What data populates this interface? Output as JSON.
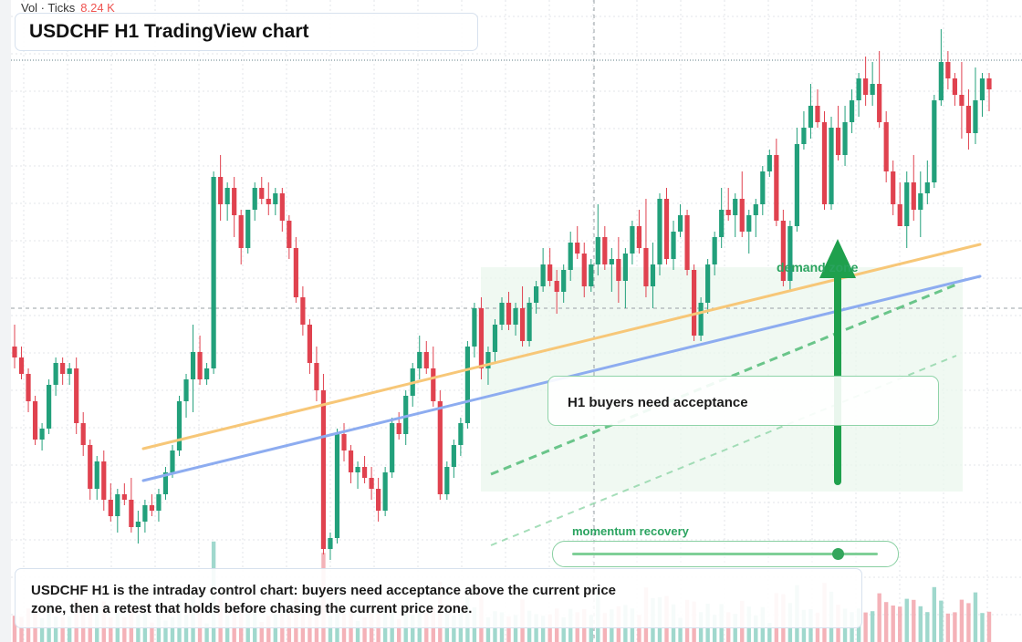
{
  "header": {
    "vol_label": "Vol · Ticks",
    "vol_value": "8.24 K",
    "title": "USDCHF H1 TradingView chart"
  },
  "annotations": {
    "callout": "H1 buyers need acceptance",
    "zone_label": "demand zone",
    "momentum_label": "momentum recovery",
    "momentum_level": 0.87,
    "summary": "USDCHF H1 is the intraday control chart: buyers need acceptance above the current price zone, then a retest that holds before chasing the current price zone."
  },
  "colors": {
    "up": "#22a07b",
    "down": "#e0424f",
    "up_volume": "#8fd1c4",
    "down_volume": "#f2a4ab",
    "orange_trend": "#f7c778",
    "blue_trend": "#8dacf0",
    "green": "#1fa04d",
    "zone_fill": "#eaf7ec",
    "grid": "#e3e6ea"
  },
  "chart_data": {
    "type": "candlestick",
    "symbol": "USDCHF",
    "timeframe": "H1",
    "grid": true,
    "ylim": [
      0,
      100
    ],
    "series": [
      {
        "ohlc": [
          [
            40,
            44,
            36,
            38
          ],
          [
            38,
            40,
            34,
            35
          ],
          [
            35,
            36,
            28,
            30
          ],
          [
            30,
            31,
            22,
            23
          ],
          [
            23,
            26,
            21,
            25
          ],
          [
            25,
            34,
            24,
            33
          ],
          [
            33,
            38,
            31,
            37
          ],
          [
            37,
            38,
            33,
            35
          ],
          [
            35,
            37,
            33,
            36
          ],
          [
            36,
            38,
            24,
            26
          ],
          [
            26,
            28,
            20,
            22
          ],
          [
            22,
            23,
            12,
            14
          ],
          [
            14,
            20,
            12,
            19
          ],
          [
            19,
            21,
            10,
            12
          ],
          [
            12,
            15,
            8,
            9
          ],
          [
            9,
            14,
            6,
            13
          ],
          [
            13,
            15,
            11,
            12
          ],
          [
            12,
            16,
            6,
            7
          ],
          [
            7,
            10,
            4,
            8
          ],
          [
            8,
            12,
            6,
            11
          ],
          [
            11,
            13,
            9,
            10
          ],
          [
            10,
            14,
            8,
            13
          ],
          [
            13,
            18,
            12,
            17
          ],
          [
            17,
            22,
            16,
            21
          ],
          [
            21,
            31,
            20,
            30
          ],
          [
            30,
            35,
            27,
            34
          ],
          [
            34,
            44,
            28,
            39
          ],
          [
            39,
            42,
            33,
            34
          ],
          [
            34,
            37,
            33,
            36
          ],
          [
            36,
            72,
            35,
            71
          ],
          [
            71,
            75,
            63,
            66
          ],
          [
            66,
            70,
            63,
            69
          ],
          [
            69,
            71,
            60,
            64
          ],
          [
            64,
            65,
            55,
            58
          ],
          [
            58,
            65,
            57,
            65
          ],
          [
            65,
            70,
            63,
            69
          ],
          [
            69,
            71,
            66,
            67
          ],
          [
            67,
            70,
            64,
            66
          ],
          [
            66,
            69,
            64,
            68
          ],
          [
            68,
            69,
            61,
            63
          ],
          [
            63,
            64,
            56,
            58
          ],
          [
            58,
            60,
            48,
            49
          ],
          [
            49,
            51,
            42,
            44
          ],
          [
            44,
            45,
            35,
            37
          ],
          [
            37,
            40,
            30,
            32
          ],
          [
            32,
            35,
            2,
            3
          ],
          [
            3,
            6,
            1,
            5
          ],
          [
            5,
            25,
            4,
            24
          ],
          [
            24,
            26,
            19,
            21
          ],
          [
            21,
            22,
            15,
            17
          ],
          [
            17,
            19,
            14,
            18
          ],
          [
            18,
            20,
            15,
            16
          ],
          [
            16,
            18,
            12,
            14
          ],
          [
            14,
            16,
            8,
            10
          ],
          [
            10,
            18,
            9,
            17
          ],
          [
            17,
            27,
            16,
            26
          ],
          [
            26,
            28,
            23,
            24
          ],
          [
            24,
            32,
            22,
            31
          ],
          [
            31,
            37,
            29,
            36
          ],
          [
            36,
            42,
            34,
            39
          ],
          [
            39,
            41,
            35,
            36
          ],
          [
            36,
            40,
            29,
            30
          ],
          [
            30,
            32,
            12,
            13
          ],
          [
            13,
            19,
            12,
            18
          ],
          [
            18,
            23,
            16,
            22
          ],
          [
            22,
            27,
            20,
            26
          ],
          [
            26,
            41,
            25,
            40
          ],
          [
            40,
            48,
            38,
            47
          ],
          [
            47,
            49,
            34,
            36
          ],
          [
            36,
            40,
            33,
            39
          ],
          [
            39,
            45,
            37,
            44
          ],
          [
            44,
            49,
            43,
            48
          ],
          [
            48,
            50,
            43,
            44
          ],
          [
            44,
            48,
            42,
            47
          ],
          [
            47,
            51,
            40,
            41
          ],
          [
            41,
            49,
            40,
            48
          ],
          [
            48,
            52,
            46,
            51
          ],
          [
            51,
            58,
            50,
            55
          ],
          [
            55,
            58,
            51,
            52
          ],
          [
            52,
            54,
            46,
            50
          ],
          [
            50,
            55,
            48,
            54
          ],
          [
            54,
            61,
            52,
            59
          ],
          [
            59,
            62,
            56,
            57
          ],
          [
            57,
            59,
            49,
            51
          ],
          [
            51,
            56,
            50,
            55
          ],
          [
            55,
            66,
            53,
            60
          ],
          [
            60,
            62,
            54,
            55
          ],
          [
            55,
            58,
            50,
            56
          ],
          [
            56,
            60,
            48,
            52
          ],
          [
            52,
            58,
            47,
            57
          ],
          [
            57,
            63,
            55,
            62
          ],
          [
            62,
            65,
            57,
            58
          ],
          [
            58,
            67,
            49,
            51
          ],
          [
            51,
            59,
            47,
            55
          ],
          [
            55,
            68,
            53,
            67
          ],
          [
            67,
            69,
            55,
            56
          ],
          [
            56,
            63,
            54,
            61
          ],
          [
            61,
            66,
            60,
            64
          ],
          [
            64,
            65,
            53,
            54
          ],
          [
            54,
            55,
            41,
            42
          ],
          [
            42,
            49,
            41,
            48
          ],
          [
            48,
            56,
            46,
            55
          ],
          [
            55,
            61,
            53,
            60
          ],
          [
            60,
            69,
            58,
            65
          ],
          [
            65,
            69,
            63,
            64
          ],
          [
            64,
            68,
            60,
            67
          ],
          [
            67,
            72,
            60,
            61
          ],
          [
            61,
            65,
            57,
            64
          ],
          [
            64,
            67,
            60,
            66
          ],
          [
            66,
            73,
            64,
            72
          ],
          [
            72,
            76,
            71,
            75
          ],
          [
            75,
            78,
            62,
            63
          ],
          [
            63,
            65,
            51,
            52
          ],
          [
            52,
            63,
            50,
            62
          ],
          [
            62,
            80,
            61,
            77
          ],
          [
            77,
            83,
            76,
            80
          ],
          [
            80,
            88,
            78,
            84
          ],
          [
            84,
            87,
            80,
            81
          ],
          [
            81,
            83,
            65,
            66
          ],
          [
            66,
            82,
            65,
            80
          ],
          [
            80,
            84,
            74,
            75
          ],
          [
            75,
            84,
            73,
            81
          ],
          [
            81,
            87,
            79,
            85
          ],
          [
            85,
            90,
            82,
            89
          ],
          [
            89,
            93,
            84,
            86
          ],
          [
            86,
            92,
            84,
            88
          ],
          [
            88,
            94,
            80,
            81
          ],
          [
            81,
            83,
            70,
            72
          ],
          [
            72,
            74,
            64,
            66
          ],
          [
            66,
            70,
            62,
            62
          ],
          [
            62,
            72,
            58,
            70
          ],
          [
            70,
            75,
            63,
            65
          ],
          [
            65,
            72,
            60,
            68
          ],
          [
            68,
            74,
            66,
            70
          ],
          [
            70,
            86,
            69,
            85
          ],
          [
            85,
            98,
            84,
            92
          ],
          [
            92,
            94,
            87,
            89
          ],
          [
            89,
            90,
            84,
            86
          ],
          [
            86,
            92,
            78,
            84
          ],
          [
            84,
            87,
            76,
            79
          ],
          [
            79,
            91,
            77,
            85
          ],
          [
            85,
            90,
            82,
            89
          ],
          [
            89,
            90,
            83,
            87
          ]
        ]
      }
    ]
  }
}
